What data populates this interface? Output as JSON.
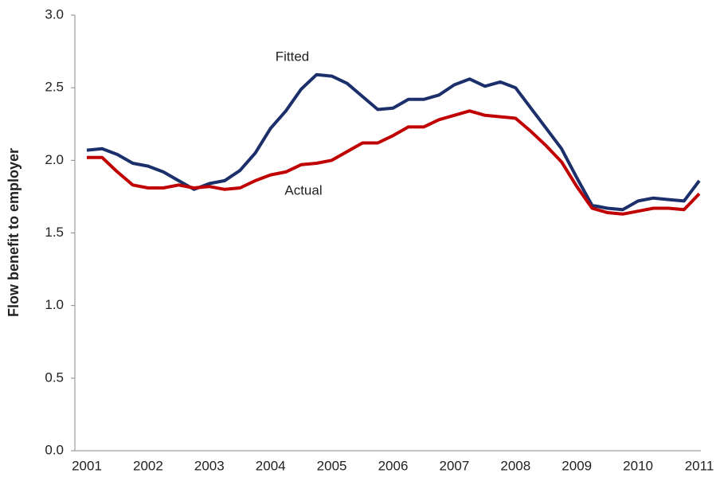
{
  "chart_data": {
    "type": "line",
    "y_label": "Flow benefit to employer",
    "categories": [
      "2001",
      null,
      null,
      null,
      "2002",
      null,
      null,
      null,
      "2003",
      null,
      null,
      null,
      "2004",
      null,
      null,
      null,
      "2005",
      null,
      null,
      null,
      "2006",
      null,
      null,
      null,
      "2007",
      null,
      null,
      null,
      "2008",
      null,
      null,
      null,
      "2009",
      null,
      null,
      null,
      "2010",
      null,
      null,
      null,
      "2011"
    ],
    "series": [
      {
        "name": "Fitted",
        "color": "#1b2f6b",
        "values": [
          2.07,
          2.08,
          2.04,
          1.98,
          1.96,
          1.92,
          1.86,
          1.8,
          1.84,
          1.86,
          1.93,
          2.05,
          2.22,
          2.34,
          2.49,
          2.59,
          2.58,
          2.53,
          2.44,
          2.35,
          2.36,
          2.42,
          2.42,
          2.45,
          2.52,
          2.56,
          2.51,
          2.54,
          2.5,
          2.36,
          2.22,
          2.08,
          1.88,
          1.69,
          1.67,
          1.66,
          1.72,
          1.74,
          1.73,
          1.72,
          1.86
        ]
      },
      {
        "name": "Actual",
        "color": "#c00000",
        "values": [
          2.02,
          2.02,
          1.92,
          1.83,
          1.81,
          1.81,
          1.83,
          1.81,
          1.82,
          1.8,
          1.81,
          1.86,
          1.9,
          1.92,
          1.97,
          1.98,
          2.0,
          2.06,
          2.12,
          2.12,
          2.17,
          2.23,
          2.23,
          2.28,
          2.31,
          2.34,
          2.31,
          2.3,
          2.29,
          2.2,
          2.1,
          1.99,
          1.82,
          1.67,
          1.64,
          1.63,
          1.65,
          1.67,
          1.67,
          1.66,
          1.77
        ]
      }
    ],
    "ylim": [
      0,
      3
    ],
    "yticks": [
      {
        "value": 0,
        "label": "0.0"
      },
      0.5,
      {
        "value": 1,
        "label": "1.0"
      },
      1.5,
      {
        "value": 2,
        "label": "2.0"
      },
      2.5,
      {
        "value": 3,
        "label": "3.0"
      }
    ],
    "grid": false
  }
}
